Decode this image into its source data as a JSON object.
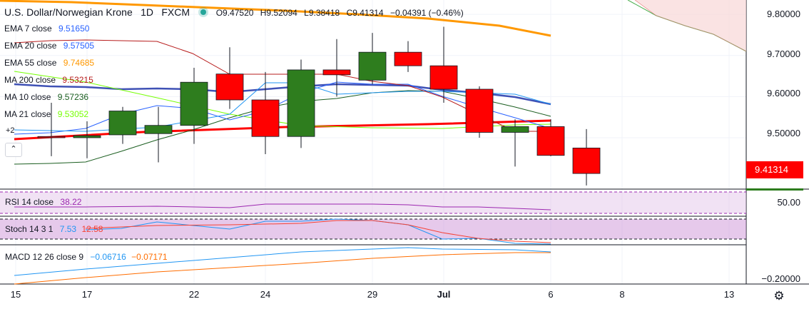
{
  "header": {
    "symbol_title": "U.S. Dollar/Norwegian Krone",
    "interval": "1D",
    "source": "FXCM",
    "ohlc": {
      "open": "O9.47520",
      "high": "H9.52094",
      "low": "L9.38418",
      "close": "C9.41314",
      "change": "−0.04391 (−0.46%)"
    }
  },
  "indicators": [
    {
      "name": "EMA 7 close",
      "value": "9.51650",
      "color": "#2962ff"
    },
    {
      "name": "EMA 20 close",
      "value": "9.57505",
      "color": "#2962ff"
    },
    {
      "name": "EMA 55 close",
      "value": "9.74685",
      "color": "#ff9800"
    },
    {
      "name": "MA 200 close",
      "value": "9.53215",
      "color": "#b71c1c"
    },
    {
      "name": "MA 10 close",
      "value": "9.57236",
      "color": "#1b5e20"
    },
    {
      "name": "MA 21 close",
      "value": "9.53052",
      "color": "#76ff03"
    }
  ],
  "hidden_indicators": "+2",
  "collapse_icon": "chevron-up-icon",
  "price_axis": {
    "labels": [
      "9.80000",
      "9.70000",
      "9.60000",
      "9.50000"
    ],
    "last_price": "9.41314",
    "last_price_color": "#ff0000"
  },
  "panes": {
    "rsi": {
      "name": "RSI 14 close",
      "value": "38.22",
      "axis_label": "50.00",
      "color": "#9c27b0"
    },
    "stoch": {
      "name": "Stoch 14 3 1",
      "value_k": "7.53",
      "value_d": "12.58",
      "color_k": "#2196f3",
      "color_d": "#f44336"
    },
    "macd": {
      "name": "MACD 12 26 close 9",
      "value_macd": "−0.06716",
      "value_signal": "−0.07171",
      "axis_label": "−0.20000",
      "color_macd": "#2196f3",
      "color_signal": "#ff6d00"
    }
  },
  "time_axis": [
    "15",
    "17",
    "22",
    "24",
    "29",
    "Jul",
    "6",
    "8",
    "13"
  ],
  "colors": {
    "up": "#2e7d1e",
    "down": "#ff0000"
  },
  "chart_data": {
    "type": "candlestick",
    "symbol": "USDNOK",
    "candles": [
      {
        "o": 9.503,
        "h": 9.585,
        "l": 9.455,
        "c": 9.5
      },
      {
        "o": 9.5,
        "h": 9.54,
        "l": 9.45,
        "c": 9.505
      },
      {
        "o": 9.507,
        "h": 9.575,
        "l": 9.485,
        "c": 9.565
      },
      {
        "o": 9.51,
        "h": 9.575,
        "l": 9.44,
        "c": 9.53
      },
      {
        "o": 9.53,
        "h": 9.67,
        "l": 9.485,
        "c": 9.635
      },
      {
        "o": 9.655,
        "h": 9.72,
        "l": 9.57,
        "c": 9.592
      },
      {
        "o": 9.592,
        "h": 9.66,
        "l": 9.46,
        "c": 9.503
      },
      {
        "o": 9.503,
        "h": 9.69,
        "l": 9.475,
        "c": 9.665
      },
      {
        "o": 9.665,
        "h": 9.74,
        "l": 9.6,
        "c": 9.653
      },
      {
        "o": 9.64,
        "h": 9.755,
        "l": 9.63,
        "c": 9.708
      },
      {
        "o": 9.708,
        "h": 9.735,
        "l": 9.66,
        "c": 9.675
      },
      {
        "o": 9.675,
        "h": 9.77,
        "l": 9.585,
        "c": 9.618
      },
      {
        "o": 9.618,
        "h": 9.625,
        "l": 9.5,
        "c": 9.513
      },
      {
        "o": 9.513,
        "h": 9.545,
        "l": 9.43,
        "c": 9.527
      },
      {
        "o": 9.527,
        "h": 9.545,
        "l": 9.455,
        "c": 9.457
      },
      {
        "o": 9.475,
        "h": 9.521,
        "l": 9.384,
        "c": 9.413
      }
    ],
    "ylim": [
      9.375,
      9.835
    ]
  }
}
